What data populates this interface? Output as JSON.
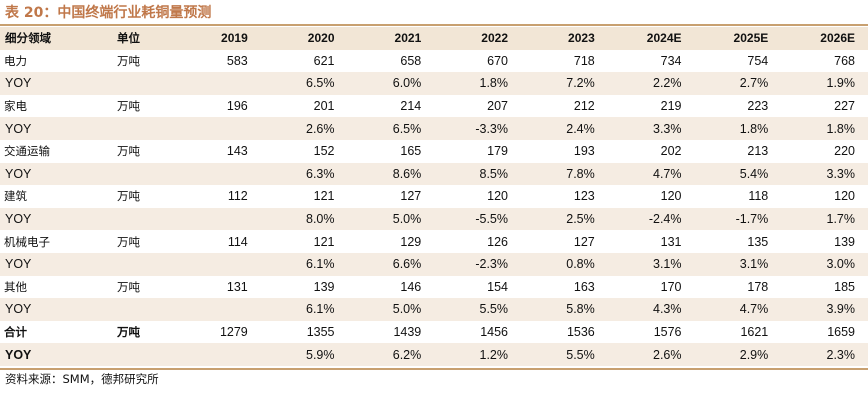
{
  "title": "表 20：中国终端行业耗铜量预测",
  "header": [
    "细分领域",
    "单位",
    "2019",
    "2020",
    "2021",
    "2022",
    "2023",
    "2024E",
    "2025E",
    "2026E"
  ],
  "rows": [
    {
      "label": "电力",
      "unit": "万吨",
      "values": [
        "583",
        "621",
        "658",
        "670",
        "718",
        "734",
        "754",
        "768"
      ],
      "yoy": [
        "",
        "6.5%",
        "6.0%",
        "1.8%",
        "7.2%",
        "2.2%",
        "2.7%",
        "1.9%"
      ]
    },
    {
      "label": "家电",
      "unit": "万吨",
      "values": [
        "196",
        "201",
        "214",
        "207",
        "212",
        "219",
        "223",
        "227"
      ],
      "yoy": [
        "",
        "2.6%",
        "6.5%",
        "-3.3%",
        "2.4%",
        "3.3%",
        "1.8%",
        "1.8%"
      ]
    },
    {
      "label": "交通运输",
      "unit": "万吨",
      "values": [
        "143",
        "152",
        "165",
        "179",
        "193",
        "202",
        "213",
        "220"
      ],
      "yoy": [
        "",
        "6.3%",
        "8.6%",
        "8.5%",
        "7.8%",
        "4.7%",
        "5.4%",
        "3.3%"
      ]
    },
    {
      "label": "建筑",
      "unit": "万吨",
      "values": [
        "112",
        "121",
        "127",
        "120",
        "123",
        "120",
        "118",
        "120"
      ],
      "yoy": [
        "",
        "8.0%",
        "5.0%",
        "-5.5%",
        "2.5%",
        "-2.4%",
        "-1.7%",
        "1.7%"
      ]
    },
    {
      "label": "机械电子",
      "unit": "万吨",
      "values": [
        "114",
        "121",
        "129",
        "126",
        "127",
        "131",
        "135",
        "139"
      ],
      "yoy": [
        "",
        "6.1%",
        "6.6%",
        "-2.3%",
        "0.8%",
        "3.1%",
        "3.1%",
        "3.0%"
      ]
    },
    {
      "label": "其他",
      "unit": "万吨",
      "values": [
        "131",
        "139",
        "146",
        "154",
        "163",
        "170",
        "178",
        "185"
      ],
      "yoy": [
        "",
        "6.1%",
        "5.0%",
        "5.5%",
        "5.8%",
        "4.3%",
        "4.7%",
        "3.9%"
      ]
    },
    {
      "label": "合计",
      "unit": "万吨",
      "values": [
        "1279",
        "1355",
        "1439",
        "1456",
        "1536",
        "1576",
        "1621",
        "1659"
      ],
      "yoy": [
        "",
        "5.9%",
        "6.2%",
        "1.2%",
        "5.5%",
        "2.6%",
        "2.9%",
        "2.3%"
      ]
    }
  ],
  "yoy_label": "YOY",
  "source": "资料来源：SMM，德邦研究所"
}
